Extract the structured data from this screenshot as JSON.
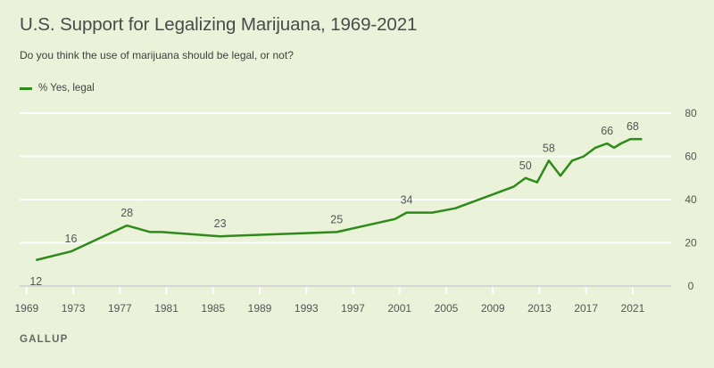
{
  "colors": {
    "background": "#eaf2d9",
    "line": "#2e8b1a",
    "grid": "#ffffff",
    "baseline": "#d6d6d6",
    "text": "#555555"
  },
  "header": {
    "title": "U.S. Support for Legalizing Marijuana, 1969-2021",
    "subtitle": "Do you think the use of marijuana should be legal, or not?"
  },
  "footer": {
    "source": "GALLUP"
  },
  "chart_data": {
    "type": "line",
    "title": "U.S. Support for Legalizing Marijuana, 1969-2021",
    "subtitle": "Do you think the use of marijuana should be legal, or not?",
    "xlabel": "",
    "ylabel": "",
    "xlim": [
      1968.4,
      2024.3
    ],
    "ylim": [
      0,
      80
    ],
    "grid": true,
    "legend": {
      "position": "top-left",
      "entries": [
        "% Yes, legal"
      ]
    },
    "x_ticks": [
      1969,
      1973,
      1977,
      1981,
      1985,
      1989,
      1993,
      1997,
      2001,
      2005,
      2009,
      2013,
      2017,
      2021
    ],
    "y_ticks": [
      0,
      20,
      40,
      60,
      80
    ],
    "y_axis_side": "right",
    "series": [
      {
        "name": "% Yes, legal",
        "x": [
          1969.8,
          1972.8,
          1977.6,
          1979.6,
          1980.6,
          1985.6,
          1995.6,
          2000.6,
          2001.6,
          2003.8,
          2005.8,
          2009.8,
          2010.8,
          2011.8,
          2012.8,
          2013.8,
          2014.8,
          2015.8,
          2016.8,
          2017.8,
          2018.8,
          2019.4,
          2020.0,
          2020.8,
          2021.8
        ],
        "values": [
          12,
          16,
          28,
          25,
          25,
          23,
          25,
          31,
          34,
          34,
          36,
          44,
          46,
          50,
          48,
          58,
          51,
          58,
          60,
          64,
          66,
          64,
          66,
          68,
          68
        ]
      }
    ],
    "annotations": [
      {
        "x": 1969.8,
        "value": 12,
        "label": "12",
        "placement": "below"
      },
      {
        "x": 1972.8,
        "value": 16,
        "label": "16",
        "placement": "above"
      },
      {
        "x": 1977.6,
        "value": 28,
        "label": "28",
        "placement": "above"
      },
      {
        "x": 1985.6,
        "value": 23,
        "label": "23",
        "placement": "above"
      },
      {
        "x": 1995.6,
        "value": 25,
        "label": "25",
        "placement": "above"
      },
      {
        "x": 2001.6,
        "value": 34,
        "label": "34",
        "placement": "above"
      },
      {
        "x": 2011.8,
        "value": 50,
        "label": "50",
        "placement": "above"
      },
      {
        "x": 2013.8,
        "value": 58,
        "label": "58",
        "placement": "above"
      },
      {
        "x": 2018.8,
        "value": 66,
        "label": "66",
        "placement": "above"
      },
      {
        "x": 2021.0,
        "value": 68,
        "label": "68",
        "placement": "above"
      }
    ]
  }
}
